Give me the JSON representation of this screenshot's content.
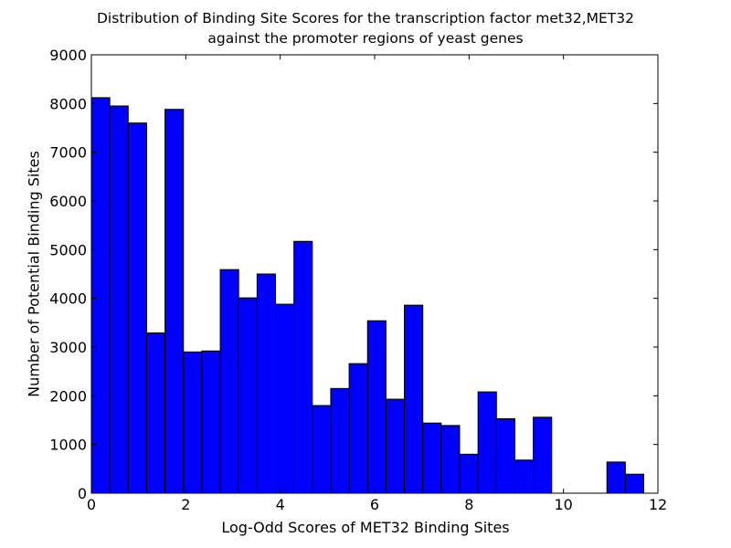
{
  "chart_data": {
    "type": "bar",
    "title_lines": [
      "Distribution of Binding Site Scores for the transcription factor met32,MET32",
      "against the promoter regions of yeast genes"
    ],
    "xlabel": "Log-Odd Scores of MET32 Binding Sites",
    "ylabel": "Number of Potential Binding Sites",
    "xlim": [
      0,
      12
    ],
    "ylim": [
      0,
      9000
    ],
    "xticks": [
      0,
      2,
      4,
      6,
      8,
      10,
      12
    ],
    "yticks": [
      0,
      1000,
      2000,
      3000,
      4000,
      5000,
      6000,
      7000,
      8000,
      9000
    ],
    "bar_color": "#0000ff",
    "bins": [
      {
        "x0": 0.0,
        "x1": 0.39,
        "value": 8120
      },
      {
        "x0": 0.39,
        "x1": 0.78,
        "value": 7950
      },
      {
        "x0": 0.78,
        "x1": 1.17,
        "value": 7600
      },
      {
        "x0": 1.17,
        "x1": 1.56,
        "value": 3290
      },
      {
        "x0": 1.56,
        "x1": 1.95,
        "value": 7880
      },
      {
        "x0": 1.95,
        "x1": 2.34,
        "value": 2900
      },
      {
        "x0": 2.34,
        "x1": 2.73,
        "value": 2920
      },
      {
        "x0": 2.73,
        "x1": 3.12,
        "value": 4590
      },
      {
        "x0": 3.12,
        "x1": 3.51,
        "value": 4010
      },
      {
        "x0": 3.51,
        "x1": 3.9,
        "value": 4500
      },
      {
        "x0": 3.9,
        "x1": 4.29,
        "value": 3880
      },
      {
        "x0": 4.29,
        "x1": 4.68,
        "value": 5170
      },
      {
        "x0": 4.68,
        "x1": 5.07,
        "value": 1800
      },
      {
        "x0": 5.07,
        "x1": 5.46,
        "value": 2150
      },
      {
        "x0": 5.46,
        "x1": 5.85,
        "value": 2660
      },
      {
        "x0": 5.85,
        "x1": 6.24,
        "value": 3540
      },
      {
        "x0": 6.24,
        "x1": 6.63,
        "value": 1930
      },
      {
        "x0": 6.63,
        "x1": 7.02,
        "value": 3860
      },
      {
        "x0": 7.02,
        "x1": 7.41,
        "value": 1440
      },
      {
        "x0": 7.41,
        "x1": 7.8,
        "value": 1390
      },
      {
        "x0": 7.8,
        "x1": 8.19,
        "value": 800
      },
      {
        "x0": 8.19,
        "x1": 8.58,
        "value": 2080
      },
      {
        "x0": 8.58,
        "x1": 8.97,
        "value": 1530
      },
      {
        "x0": 8.97,
        "x1": 9.36,
        "value": 680
      },
      {
        "x0": 9.36,
        "x1": 9.75,
        "value": 1560
      },
      {
        "x0": 9.75,
        "x1": 10.14,
        "value": 0
      },
      {
        "x0": 10.14,
        "x1": 10.53,
        "value": 0
      },
      {
        "x0": 10.53,
        "x1": 10.92,
        "value": 0
      },
      {
        "x0": 10.92,
        "x1": 11.31,
        "value": 640
      },
      {
        "x0": 11.31,
        "x1": 11.7,
        "value": 390
      }
    ]
  }
}
